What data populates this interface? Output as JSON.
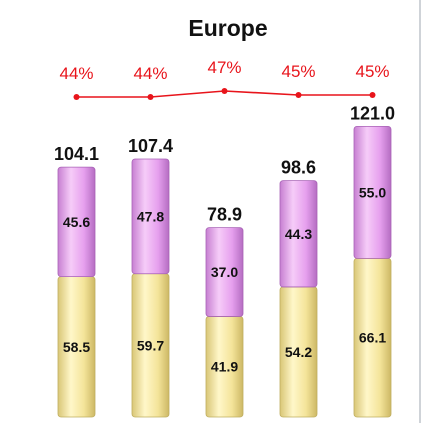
{
  "chart_data": {
    "type": "bar",
    "title": "Europe",
    "categories": [
      "",
      "",
      "",
      "",
      ""
    ],
    "series": [
      {
        "values": [
          58.5,
          59.7,
          41.9,
          54.2,
          66.1
        ],
        "color": "#f6e79f"
      },
      {
        "values": [
          45.6,
          47.8,
          37.0,
          44.3,
          55.0
        ],
        "color": "#e8a1ef"
      }
    ],
    "totals": [
      104.1,
      107.4,
      78.9,
      98.6,
      121.0
    ],
    "total_labels": [
      "104.1",
      "107.4",
      "78.9",
      "98.6",
      "121.0"
    ],
    "percent_line": {
      "values": [
        44,
        44,
        47,
        45,
        45
      ],
      "labels": [
        "44%",
        "44%",
        "47%",
        "45%",
        "45%"
      ],
      "color": "#e8141b"
    },
    "ylim": [
      0,
      125
    ],
    "grid": false,
    "legend": "none"
  }
}
